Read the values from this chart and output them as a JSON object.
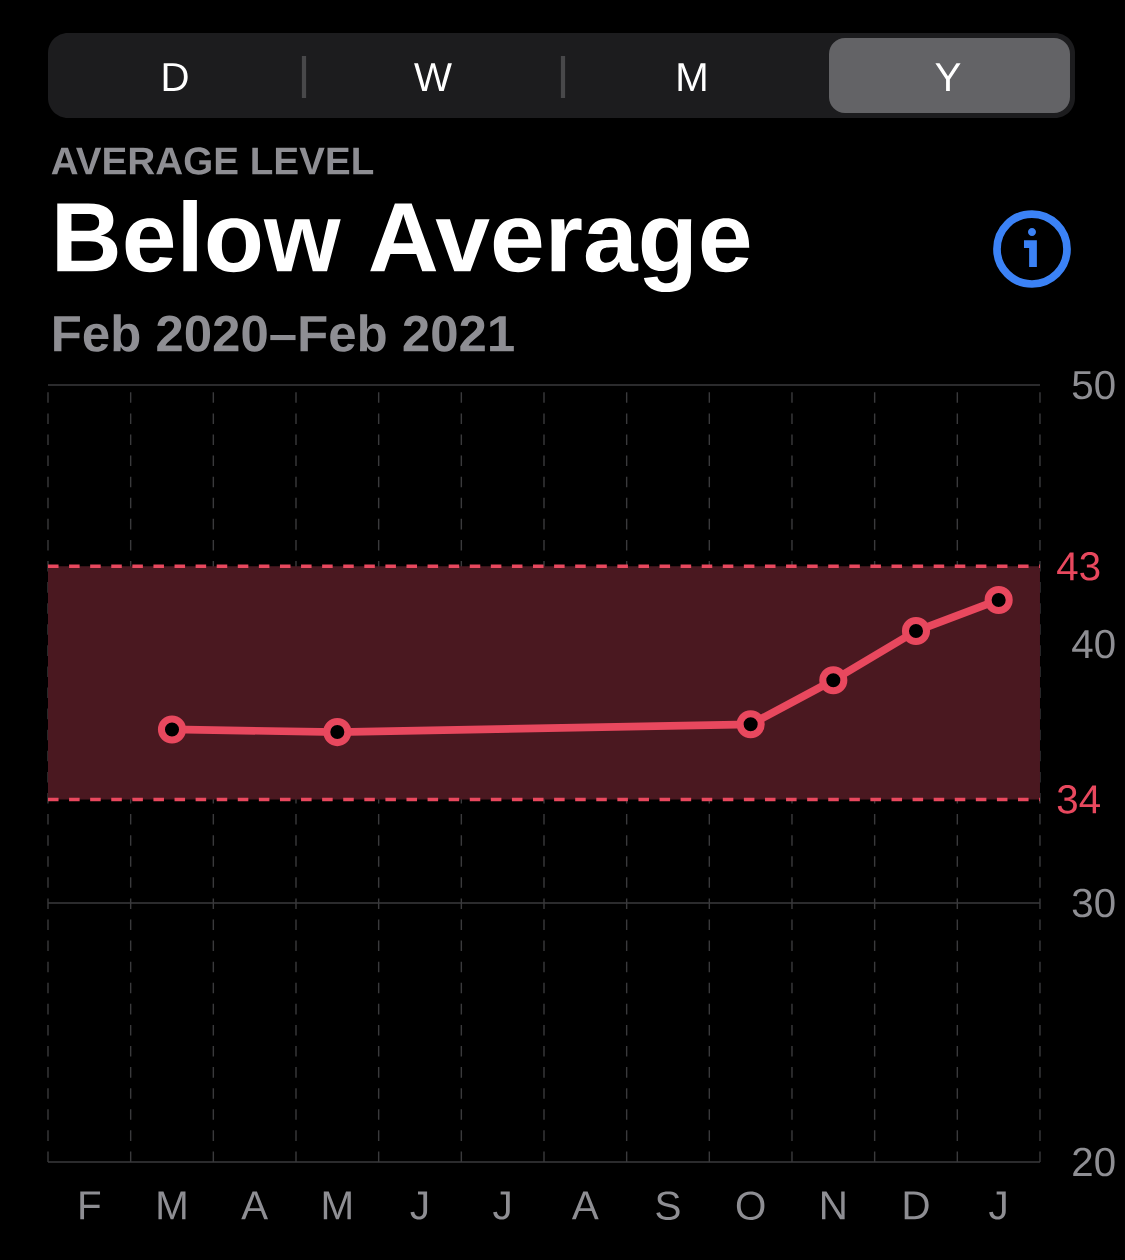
{
  "chart_data": {
    "type": "line",
    "title": "Below Average",
    "subtitle": "Feb 2020–Feb 2021",
    "annotations": [
      "D",
      "W",
      "M",
      "Y",
      "AVERAGE LEVEL"
    ],
    "categories": [
      "F",
      "M",
      "A",
      "M",
      "J",
      "J",
      "A",
      "S",
      "O",
      "N",
      "D",
      "J"
    ],
    "series": [
      {
        "color": "#e8485e",
        "values": [
          null,
          36.7,
          null,
          36.6,
          null,
          null,
          null,
          null,
          36.9,
          38.6,
          40.5,
          41.7
        ]
      }
    ],
    "ylim": [
      20,
      50
    ],
    "yticks": [
      20,
      30,
      40,
      50
    ],
    "bands": [
      {
        "axis": "y",
        "from": 34,
        "to": 43,
        "color": "#4a1820"
      }
    ],
    "ref_lines": [
      {
        "axis": "y",
        "value": 43,
        "label": "43",
        "color": "#e8485e",
        "line_style": "dashed"
      },
      {
        "axis": "y",
        "value": 34,
        "label": "34",
        "color": "#e8485e",
        "line_style": "dashed"
      }
    ],
    "grid": true,
    "marker": "circle",
    "line_style": "solid"
  }
}
